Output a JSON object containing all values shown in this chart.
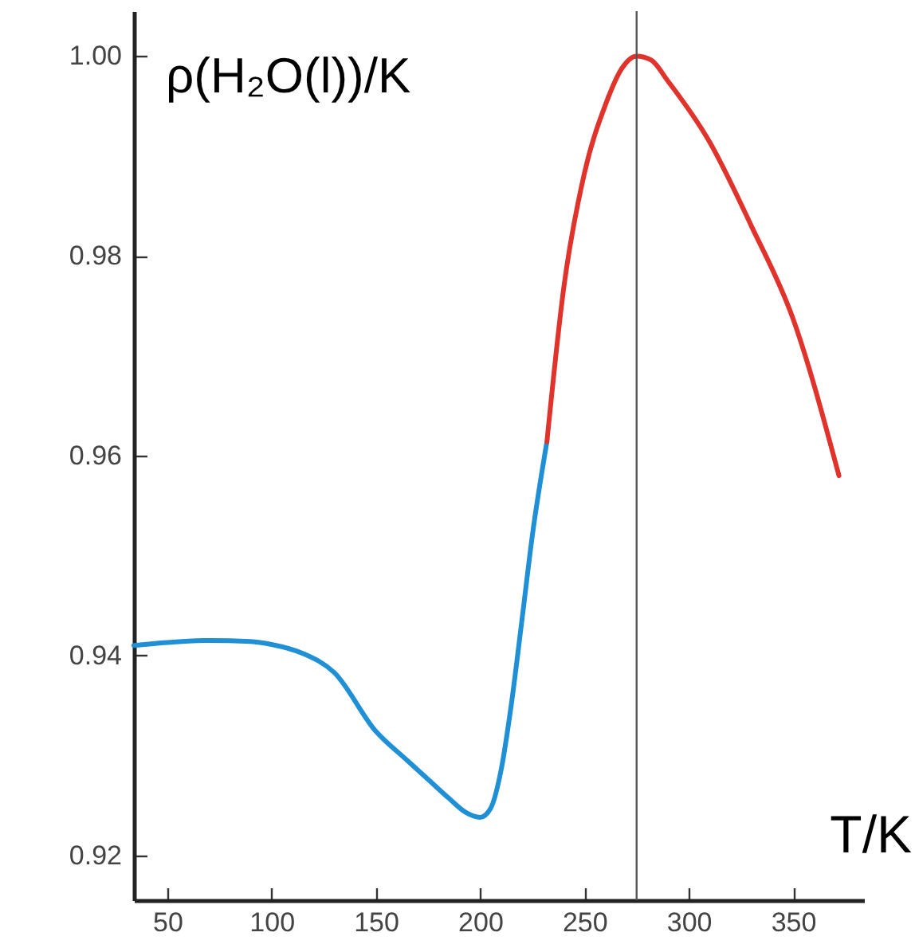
{
  "chart_data": {
    "type": "line",
    "xlabel": "T/K",
    "ylabel": "ρ(H₂O(l))/K",
    "xlim": [
      34,
      384
    ],
    "ylim": [
      0.9155,
      1.0045
    ],
    "xticks": [
      50,
      100,
      150,
      200,
      250,
      300,
      350
    ],
    "yticks": [
      0.92,
      0.94,
      0.96,
      0.98,
      {
        "value": 1,
        "label": "1.00"
      }
    ],
    "series": [
      {
        "color": "#1f8fd6",
        "x": [
          34,
          50,
          70,
          90,
          100,
          115,
          130,
          150,
          165,
          175,
          185,
          193,
          200,
          205,
          210,
          215,
          220,
          225,
          232
        ],
        "values": [
          0.941,
          0.9413,
          0.9415,
          0.9414,
          0.9411,
          0.9402,
          0.9383,
          0.9324,
          0.9295,
          0.9276,
          0.9257,
          0.9243,
          0.9238,
          0.9247,
          0.9285,
          0.9352,
          0.9435,
          0.952,
          0.9614
        ]
      },
      {
        "color": "#e0332b",
        "x": [
          232,
          240,
          250,
          260,
          268,
          275,
          282,
          290,
          310,
          330,
          350,
          372
        ],
        "values": [
          0.9614,
          0.9767,
          0.9883,
          0.9951,
          0.9988,
          1.0,
          0.9996,
          0.9975,
          0.9914,
          0.983,
          0.9737,
          0.958
        ]
      }
    ],
    "ref_lines": [
      {
        "axis": "x",
        "value": 275,
        "color": "#555555"
      }
    ]
  }
}
